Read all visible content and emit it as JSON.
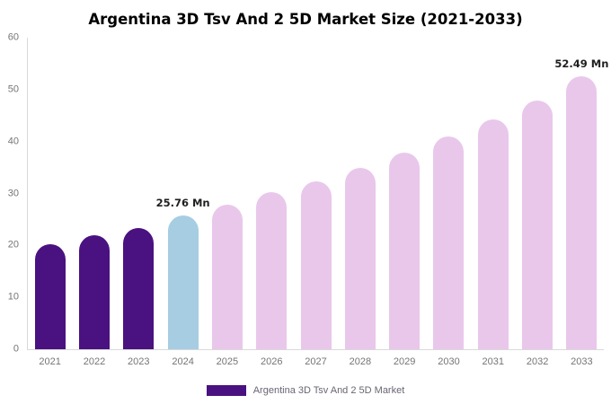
{
  "title": "Argentina 3D Tsv And 2 5D Market Size (2021-2033)",
  "legend": {
    "label": "Argentina 3D Tsv And 2 5D Market",
    "swatch_color": "#4a1280"
  },
  "colors": {
    "historical_bar": "#4a1280",
    "current_year_bar": "#a7cde2",
    "forecast_bar": "#e9c7eb",
    "axis_line": "#d9d9d9",
    "tick_text": "#757575",
    "annotation_text": "#1f1f1f",
    "title_text": "#000000"
  },
  "chart_data": {
    "type": "bar",
    "title": "Argentina 3D Tsv And 2 5D Market Size (2021-2033)",
    "categories": [
      "2021",
      "2022",
      "2023",
      "2024",
      "2025",
      "2026",
      "2027",
      "2028",
      "2029",
      "2030",
      "2031",
      "2032",
      "2033"
    ],
    "values": [
      20.3,
      21.9,
      23.4,
      25.76,
      27.9,
      30.2,
      32.4,
      35.0,
      37.9,
      41.0,
      44.3,
      47.9,
      52.49
    ],
    "bar_colors": [
      "#4a1280",
      "#4a1280",
      "#4a1280",
      "#a7cde2",
      "#e9c7eb",
      "#e9c7eb",
      "#e9c7eb",
      "#e9c7eb",
      "#e9c7eb",
      "#e9c7eb",
      "#e9c7eb",
      "#e9c7eb",
      "#e9c7eb"
    ],
    "unit": "Mn",
    "xlabel": "",
    "ylabel": "",
    "ylim": [
      0,
      60
    ],
    "yticks": [
      0,
      10,
      20,
      30,
      40,
      50,
      60
    ],
    "grid": false,
    "legend_position": "bottom",
    "legend_entries": [
      "Argentina 3D Tsv And 2 5D Market"
    ],
    "annotations": [
      {
        "category": "2024",
        "text": "25.76 Mn"
      },
      {
        "category": "2033",
        "text": "52.49 Mn"
      }
    ]
  }
}
